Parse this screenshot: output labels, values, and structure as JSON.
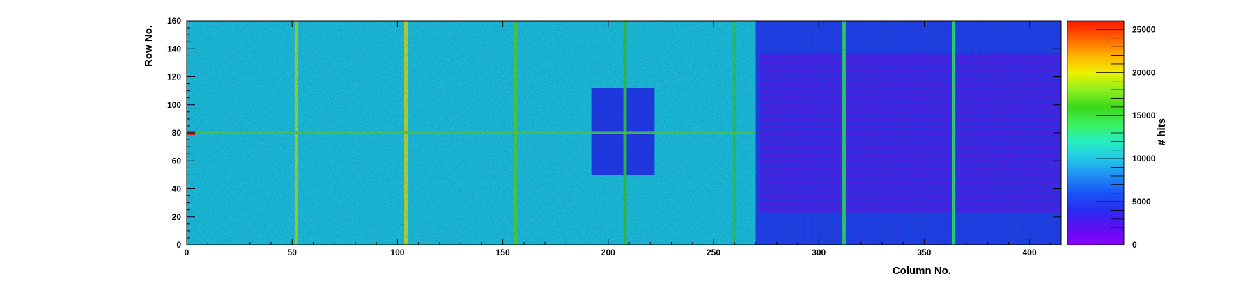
{
  "chart_data": {
    "type": "heatmap",
    "title": "",
    "xlabel": "Column No.",
    "ylabel": "Row No.",
    "zlabel": "# hits",
    "xlim": [
      0,
      415
    ],
    "ylim": [
      0,
      160
    ],
    "zlim": [
      0,
      26000
    ],
    "x_ticks": [
      0,
      50,
      100,
      150,
      200,
      250,
      300,
      350,
      400
    ],
    "y_ticks": [
      0,
      20,
      40,
      60,
      80,
      100,
      120,
      140,
      160
    ],
    "z_ticks": [
      0,
      5000,
      10000,
      15000,
      20000,
      25000
    ],
    "z_tick_labels": [
      "0",
      "5000",
      "10000",
      "15000",
      "20000",
      "25000"
    ],
    "colormap": [
      "#8a00ff",
      "#5a10f0",
      "#2a2bf0",
      "#1a55f5",
      "#1f8cf5",
      "#22c8e8",
      "#28eec0",
      "#3cf060",
      "#3cd81a",
      "#90f020",
      "#f0f000",
      "#ffb000",
      "#ff6000",
      "#ff1800"
    ],
    "background_level": 10500,
    "regions": [
      {
        "label": "left chip area (columns 0-270)",
        "x": [
          0,
          270
        ],
        "y": [
          0,
          160
        ],
        "value": 10500
      },
      {
        "label": "right chip area (columns 270-415)",
        "x": [
          270,
          415
        ],
        "y": [
          0,
          160
        ],
        "value": 4500
      },
      {
        "label": "sensor block",
        "x": [
          272,
          415
        ],
        "y": [
          23,
          137
        ],
        "value": 1500
      },
      {
        "label": "central block",
        "x": [
          192,
          222
        ],
        "y": [
          50,
          112
        ],
        "value": 4000
      }
    ],
    "hot_columns": [
      {
        "x": 52,
        "value": 19000
      },
      {
        "x": 104,
        "value": 20000
      },
      {
        "x": 156,
        "value": 17000
      },
      {
        "x": 208,
        "value": 16000
      },
      {
        "x": 260,
        "value": 15500
      },
      {
        "x": 312,
        "value": 14500
      },
      {
        "x": 364,
        "value": 14000
      }
    ],
    "hot_row": {
      "y": 80,
      "value": 17000
    },
    "max_pixel": {
      "x": 1,
      "y": 80,
      "value": 25500
    }
  }
}
